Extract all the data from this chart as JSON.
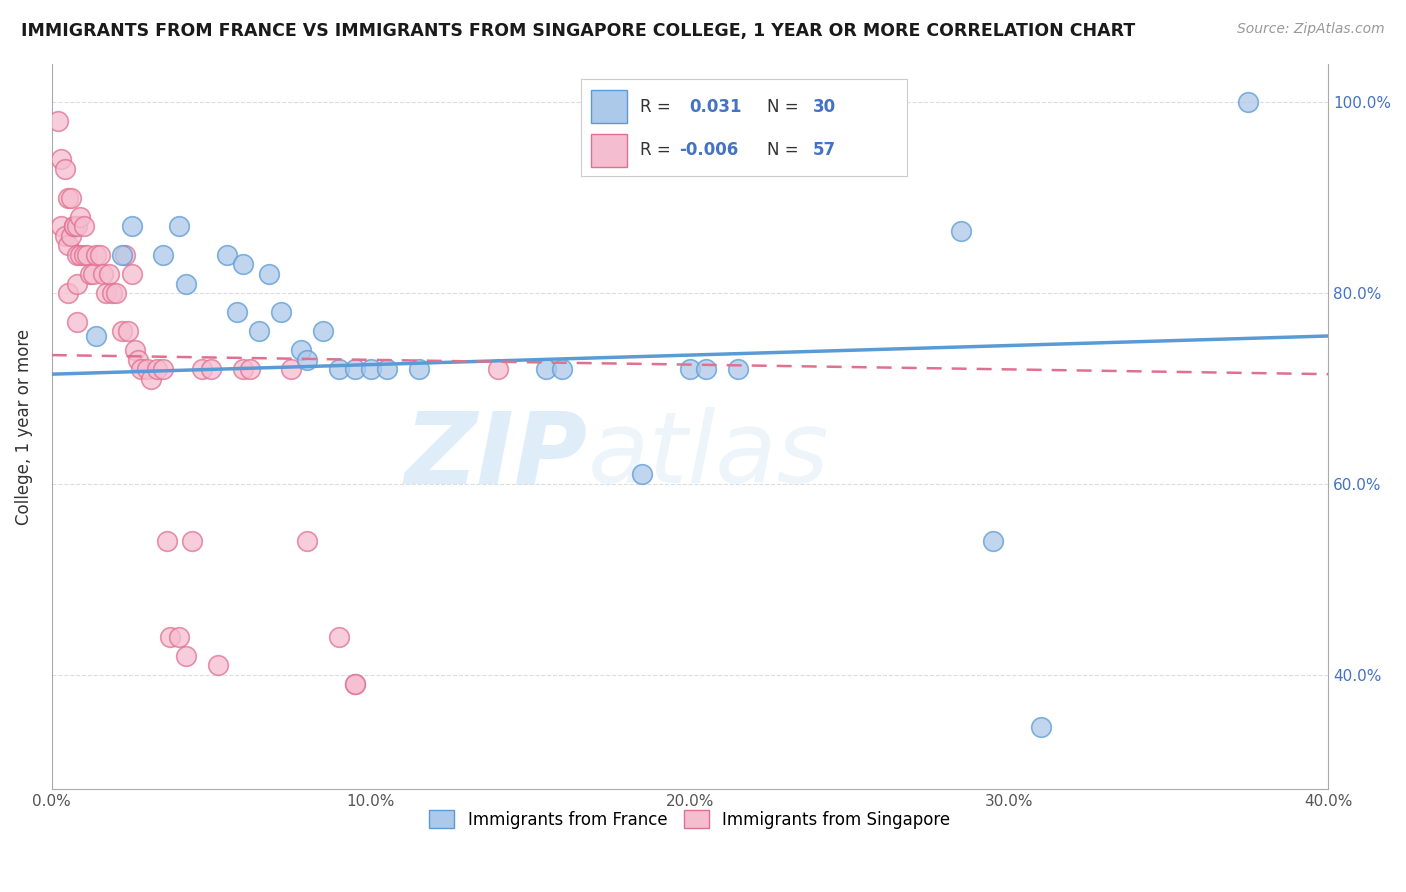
{
  "title": "IMMIGRANTS FROM FRANCE VS IMMIGRANTS FROM SINGAPORE COLLEGE, 1 YEAR OR MORE CORRELATION CHART",
  "source_text": "Source: ZipAtlas.com",
  "ylabel": "College, 1 year or more",
  "xlim": [
    0.0,
    0.4
  ],
  "ylim": [
    0.28,
    1.04
  ],
  "xticks": [
    0.0,
    0.05,
    0.1,
    0.15,
    0.2,
    0.25,
    0.3,
    0.35,
    0.4
  ],
  "xtick_labels": [
    "0.0%",
    "",
    "10.0%",
    "",
    "20.0%",
    "",
    "30.0%",
    "",
    "40.0%"
  ],
  "yticks_left": [
    0.4,
    0.6,
    0.8,
    1.0
  ],
  "ytick_labels_left": [
    "",
    "",
    "",
    ""
  ],
  "yticks_right": [
    0.4,
    0.6,
    0.8,
    1.0
  ],
  "ytick_labels_right": [
    "40.0%",
    "60.0%",
    "80.0%",
    "100.0%"
  ],
  "legend_r_france": "0.031",
  "legend_n_france": "30",
  "legend_r_singapore": "-0.006",
  "legend_n_singapore": "57",
  "legend_label_france": "Immigrants from France",
  "legend_label_singapore": "Immigrants from Singapore",
  "france_color": "#adc9e9",
  "france_line_color": "#5b9bd5",
  "singapore_color": "#f5bdd0",
  "singapore_line_color": "#e07090",
  "background_color": "#ffffff",
  "grid_color": "#dddddd",
  "watermark_zip": "ZIP",
  "watermark_atlas": "atlas",
  "france_trend_x": [
    0.0,
    0.4
  ],
  "france_trend_y": [
    0.715,
    0.755
  ],
  "singapore_trend_x": [
    0.0,
    0.4
  ],
  "singapore_trend_y": [
    0.735,
    0.715
  ],
  "france_x": [
    0.014,
    0.022,
    0.025,
    0.035,
    0.04,
    0.042,
    0.055,
    0.058,
    0.06,
    0.065,
    0.068,
    0.072,
    0.078,
    0.08,
    0.085,
    0.09,
    0.095,
    0.1,
    0.105,
    0.115,
    0.155,
    0.16,
    0.185,
    0.2,
    0.205,
    0.215,
    0.285,
    0.295,
    0.31,
    0.375
  ],
  "france_y": [
    0.755,
    0.84,
    0.87,
    0.84,
    0.87,
    0.81,
    0.84,
    0.78,
    0.83,
    0.76,
    0.82,
    0.78,
    0.74,
    0.73,
    0.76,
    0.72,
    0.72,
    0.72,
    0.72,
    0.72,
    0.72,
    0.72,
    0.61,
    0.72,
    0.72,
    0.72,
    0.865,
    0.54,
    0.345,
    1.0
  ],
  "singapore_x": [
    0.002,
    0.003,
    0.003,
    0.004,
    0.004,
    0.005,
    0.005,
    0.005,
    0.006,
    0.006,
    0.007,
    0.007,
    0.008,
    0.008,
    0.008,
    0.008,
    0.009,
    0.009,
    0.01,
    0.01,
    0.011,
    0.012,
    0.013,
    0.014,
    0.015,
    0.016,
    0.017,
    0.018,
    0.019,
    0.02,
    0.022,
    0.023,
    0.024,
    0.025,
    0.026,
    0.027,
    0.028,
    0.03,
    0.031,
    0.033,
    0.035,
    0.036,
    0.037,
    0.04,
    0.042,
    0.044,
    0.047,
    0.05,
    0.052,
    0.06,
    0.062,
    0.075,
    0.08,
    0.09,
    0.095,
    0.095,
    0.14
  ],
  "singapore_y": [
    0.98,
    0.94,
    0.87,
    0.93,
    0.86,
    0.9,
    0.85,
    0.8,
    0.9,
    0.86,
    0.87,
    0.87,
    0.87,
    0.84,
    0.81,
    0.77,
    0.88,
    0.84,
    0.87,
    0.84,
    0.84,
    0.82,
    0.82,
    0.84,
    0.84,
    0.82,
    0.8,
    0.82,
    0.8,
    0.8,
    0.76,
    0.84,
    0.76,
    0.82,
    0.74,
    0.73,
    0.72,
    0.72,
    0.71,
    0.72,
    0.72,
    0.54,
    0.44,
    0.44,
    0.42,
    0.54,
    0.72,
    0.72,
    0.41,
    0.72,
    0.72,
    0.72,
    0.54,
    0.44,
    0.39,
    0.39,
    0.72
  ]
}
